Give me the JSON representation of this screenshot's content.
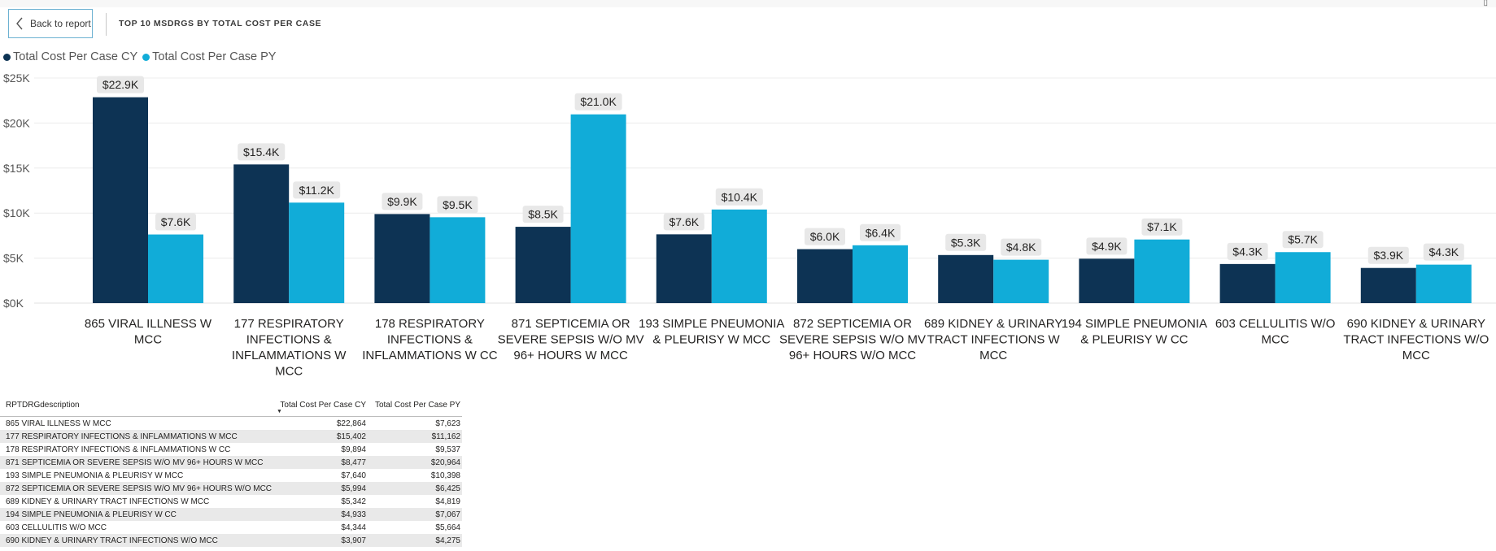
{
  "header": {
    "back_label": "Back to report",
    "title": "TOP 10 MSDRGS BY TOTAL COST PER CASE"
  },
  "colors": {
    "cy": "#0d3354",
    "py": "#11acd8",
    "label_bg": "#e8e8e8"
  },
  "chart_data": {
    "type": "bar",
    "categories": [
      "865 VIRAL ILLNESS W MCC",
      "177 RESPIRATORY INFECTIONS & INFLAMMATIONS W MCC",
      "178 RESPIRATORY INFECTIONS & INFLAMMATIONS W CC",
      "871 SEPTICEMIA OR SEVERE SEPSIS W/O MV 96+ HOURS W MCC",
      "193 SIMPLE PNEUMONIA & PLEURISY W MCC",
      "872 SEPTICEMIA OR SEVERE SEPSIS W/O MV 96+ HOURS W/O MCC",
      "689 KIDNEY & URINARY TRACT INFECTIONS W MCC",
      "194 SIMPLE PNEUMONIA & PLEURISY W CC",
      "603 CELLULITIS W/O MCC",
      "690 KIDNEY & URINARY TRACT INFECTIONS W/O MCC"
    ],
    "category_label_lines": [
      [
        "865 VIRAL ILLNESS W",
        "MCC"
      ],
      [
        "177 RESPIRATORY",
        "INFECTIONS &",
        "INFLAMMATIONS W",
        "MCC"
      ],
      [
        "178 RESPIRATORY",
        "INFECTIONS &",
        "INFLAMMATIONS W CC"
      ],
      [
        "871 SEPTICEMIA OR",
        "SEVERE SEPSIS W/O MV",
        "96+ HOURS W MCC"
      ],
      [
        "193 SIMPLE PNEUMONIA",
        "& PLEURISY W MCC"
      ],
      [
        "872 SEPTICEMIA OR",
        "SEVERE SEPSIS W/O MV",
        "96+ HOURS W/O MCC"
      ],
      [
        "689 KIDNEY & URINARY",
        "TRACT INFECTIONS W",
        "MCC"
      ],
      [
        "194 SIMPLE PNEUMONIA",
        "& PLEURISY W CC"
      ],
      [
        "603 CELLULITIS W/O",
        "MCC"
      ],
      [
        "690 KIDNEY & URINARY",
        "TRACT INFECTIONS W/O",
        "MCC"
      ]
    ],
    "series": [
      {
        "name": "Total Cost Per Case CY",
        "values": [
          22864,
          15402,
          9894,
          8477,
          7640,
          5994,
          5342,
          4933,
          4344,
          3907
        ],
        "labels": [
          "$22.9K",
          "$15.4K",
          "$9.9K",
          "$8.5K",
          "$7.6K",
          "$6.0K",
          "$5.3K",
          "$4.9K",
          "$4.3K",
          "$3.9K"
        ]
      },
      {
        "name": "Total Cost Per Case PY",
        "values": [
          7623,
          11162,
          9537,
          20964,
          10398,
          6425,
          4819,
          7067,
          5664,
          4275
        ],
        "labels": [
          "$7.6K",
          "$11.2K",
          "$9.5K",
          "$21.0K",
          "$10.4K",
          "$6.4K",
          "$4.8K",
          "$7.1K",
          "$5.7K",
          "$4.3K"
        ]
      }
    ],
    "y_ticks": [
      0,
      5000,
      10000,
      15000,
      20000,
      25000
    ],
    "y_tick_labels": [
      "$0K",
      "$5K",
      "$10K",
      "$15K",
      "$20K",
      "$25K"
    ],
    "ylim": [
      0,
      25000
    ],
    "grid": true,
    "legend_position": "top-left"
  },
  "table": {
    "headers": [
      "RPTDRGdescription",
      "Total Cost Per Case CY",
      "Total Cost Per Case PY"
    ],
    "rows": [
      [
        "865 VIRAL ILLNESS W MCC",
        "$22,864",
        "$7,623"
      ],
      [
        "177 RESPIRATORY INFECTIONS & INFLAMMATIONS W MCC",
        "$15,402",
        "$11,162"
      ],
      [
        "178 RESPIRATORY INFECTIONS & INFLAMMATIONS W CC",
        "$9,894",
        "$9,537"
      ],
      [
        "871 SEPTICEMIA OR SEVERE SEPSIS W/O MV 96+ HOURS W MCC",
        "$8,477",
        "$20,964"
      ],
      [
        "193 SIMPLE PNEUMONIA & PLEURISY W MCC",
        "$7,640",
        "$10,398"
      ],
      [
        "872 SEPTICEMIA OR SEVERE SEPSIS W/O MV 96+ HOURS W/O MCC",
        "$5,994",
        "$6,425"
      ],
      [
        "689 KIDNEY & URINARY TRACT INFECTIONS W MCC",
        "$5,342",
        "$4,819"
      ],
      [
        "194 SIMPLE PNEUMONIA & PLEURISY W CC",
        "$4,933",
        "$7,067"
      ],
      [
        "603 CELLULITIS W/O MCC",
        "$4,344",
        "$5,664"
      ],
      [
        "690 KIDNEY & URINARY TRACT INFECTIONS W/O MCC",
        "$3,907",
        "$4,275"
      ]
    ]
  }
}
